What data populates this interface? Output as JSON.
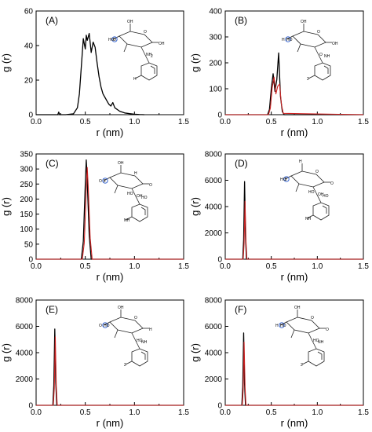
{
  "chart_data": [
    {
      "type": "line",
      "panel_label": "(A)",
      "xlabel": "r (nm)",
      "ylabel": "g (r)",
      "xlim": [
        0.0,
        1.5
      ],
      "ylim": [
        0,
        60
      ],
      "xticks": [
        0.0,
        0.5,
        1.0,
        1.5
      ],
      "yticks": [
        0,
        20,
        40,
        60
      ],
      "xtick_labels": [
        "0.0",
        "0.5",
        "1.0",
        "1.5"
      ],
      "ytick_labels": [
        "0",
        "20",
        "40",
        "60"
      ],
      "molecule_labels": [
        "OH",
        "O",
        "OH",
        "HO",
        "NH",
        "2",
        "H",
        "O"
      ],
      "series": [
        {
          "color": "#000000",
          "x": [
            0.0,
            0.22,
            0.23,
            0.24,
            0.3,
            0.38,
            0.42,
            0.44,
            0.46,
            0.48,
            0.5,
            0.51,
            0.52,
            0.54,
            0.56,
            0.58,
            0.6,
            0.62,
            0.64,
            0.66,
            0.68,
            0.7,
            0.72,
            0.74,
            0.76,
            0.78,
            0.8,
            0.85,
            0.9,
            0.95,
            1.0,
            1.05,
            1.1
          ],
          "y": [
            0,
            0,
            1.5,
            0,
            0,
            0.5,
            4,
            12,
            28,
            44,
            38,
            46,
            43,
            47,
            36,
            42,
            39,
            30,
            22,
            16,
            12,
            10,
            8,
            6,
            5,
            7,
            4,
            2,
            1,
            0.6,
            0.3,
            0.1,
            0
          ]
        }
      ]
    },
    {
      "type": "line",
      "panel_label": "(B)",
      "xlabel": "r (nm)",
      "ylabel": "g (r)",
      "xlim": [
        0.0,
        1.5
      ],
      "ylim": [
        0,
        400
      ],
      "xticks": [
        0.0,
        0.5,
        1.0,
        1.5
      ],
      "yticks": [
        0,
        100,
        200,
        300,
        400
      ],
      "xtick_labels": [
        "0.0",
        "0.5",
        "1.0",
        "1.5"
      ],
      "ytick_labels": [
        "0",
        "100",
        "200",
        "300",
        "400"
      ],
      "molecule_labels": [
        "OH",
        "O",
        "OH",
        "H",
        "O",
        "NH",
        "2",
        "HO"
      ],
      "series": [
        {
          "color": "#000000",
          "x": [
            0.0,
            0.46,
            0.48,
            0.5,
            0.52,
            0.54,
            0.56,
            0.58,
            0.6,
            0.62,
            0.64,
            1.5
          ],
          "y": [
            0,
            0,
            20,
            100,
            158,
            90,
            135,
            238,
            70,
            12,
            0,
            0
          ]
        },
        {
          "color": "#cc2222",
          "x": [
            0.0,
            0.47,
            0.49,
            0.51,
            0.53,
            0.55,
            0.57,
            0.59,
            0.61,
            0.63,
            1.5
          ],
          "y": [
            0,
            0,
            25,
            105,
            145,
            80,
            110,
            118,
            40,
            5,
            0
          ]
        }
      ]
    },
    {
      "type": "line",
      "panel_label": "(C)",
      "xlabel": "r (nm)",
      "ylabel": "g (r)",
      "xlim": [
        0.0,
        1.5
      ],
      "ylim": [
        0,
        350
      ],
      "xticks": [
        0.0,
        0.5,
        1.0,
        1.5
      ],
      "yticks": [
        0,
        50,
        100,
        150,
        200,
        250,
        300,
        350
      ],
      "xtick_labels": [
        "0.0",
        "0.5",
        "1.0",
        "1.5"
      ],
      "ytick_labels": [
        "0",
        "50",
        "100",
        "150",
        "200",
        "250",
        "300",
        "350"
      ],
      "molecule_labels": [
        "OH",
        "H",
        "O",
        "O",
        "OH",
        "HO",
        "NH",
        "2",
        "HO"
      ],
      "series": [
        {
          "color": "#000000",
          "x": [
            0.0,
            0.46,
            0.48,
            0.5,
            0.51,
            0.52,
            0.54,
            0.56,
            1.5
          ],
          "y": [
            0,
            0,
            60,
            250,
            330,
            260,
            80,
            0,
            0
          ]
        },
        {
          "color": "#cc2222",
          "x": [
            0.0,
            0.47,
            0.49,
            0.51,
            0.52,
            0.53,
            0.55,
            0.57,
            1.5
          ],
          "y": [
            0,
            0,
            55,
            230,
            305,
            240,
            70,
            0,
            0
          ]
        }
      ]
    },
    {
      "type": "line",
      "panel_label": "(D)",
      "xlabel": "r (nm)",
      "ylabel": "g (r)",
      "xlim": [
        0.0,
        1.5
      ],
      "ylim": [
        0,
        8000
      ],
      "xticks": [
        0.0,
        0.5,
        1.0,
        1.5
      ],
      "yticks": [
        0,
        2000,
        4000,
        6000,
        8000
      ],
      "xtick_labels": [
        "0.0",
        "0.5",
        "1.0",
        "1.5"
      ],
      "ytick_labels": [
        "0",
        "2000",
        "4000",
        "6000",
        "8000"
      ],
      "molecule_labels": [
        "H",
        "O",
        "O",
        "HO",
        "OH",
        "HO",
        "NH",
        "2",
        "HO"
      ],
      "series": [
        {
          "color": "#000000",
          "x": [
            0.0,
            0.19,
            0.2,
            0.21,
            0.22,
            0.23,
            1.5
          ],
          "y": [
            0,
            0,
            1500,
            5900,
            1800,
            0,
            0
          ]
        },
        {
          "color": "#cc2222",
          "x": [
            0.0,
            0.195,
            0.205,
            0.215,
            0.225,
            0.235,
            1.5
          ],
          "y": [
            0,
            0,
            1200,
            4400,
            1400,
            0,
            0
          ]
        }
      ]
    },
    {
      "type": "line",
      "panel_label": "(E)",
      "xlabel": "r (nm)",
      "ylabel": "g (r)",
      "xlim": [
        0.0,
        1.5
      ],
      "ylim": [
        0,
        8000
      ],
      "xticks": [
        0.0,
        0.5,
        1.0,
        1.5
      ],
      "yticks": [
        0,
        2000,
        4000,
        6000,
        8000
      ],
      "xtick_labels": [
        "0.0",
        "0.5",
        "1.0",
        "1.5"
      ],
      "ytick_labels": [
        "0",
        "2000",
        "4000",
        "6000",
        "8000"
      ],
      "molecule_labels": [
        "OH",
        "O",
        "H",
        "O",
        "HO",
        "NH",
        "2",
        "HO"
      ],
      "series": [
        {
          "color": "#000000",
          "x": [
            0.0,
            0.17,
            0.18,
            0.19,
            0.2,
            0.21,
            1.5
          ],
          "y": [
            0,
            0,
            1500,
            5800,
            1700,
            0,
            0
          ]
        },
        {
          "color": "#cc2222",
          "x": [
            0.0,
            0.175,
            0.185,
            0.195,
            0.205,
            0.215,
            1.5
          ],
          "y": [
            0,
            0,
            1300,
            5200,
            1500,
            0,
            0
          ]
        }
      ]
    },
    {
      "type": "line",
      "panel_label": "(F)",
      "xlabel": "r (nm)",
      "ylabel": "g (r)",
      "xlim": [
        0.0,
        1.5
      ],
      "ylim": [
        0,
        8000
      ],
      "xticks": [
        0.0,
        0.5,
        1.0,
        1.5
      ],
      "yticks": [
        0,
        2000,
        4000,
        6000,
        8000
      ],
      "xtick_labels": [
        "0.0",
        "0.5",
        "1.0",
        "1.5"
      ],
      "ytick_labels": [
        "0",
        "2000",
        "4000",
        "6000",
        "8000"
      ],
      "molecule_labels": [
        "OH",
        "O",
        "O",
        "H",
        "HO",
        "NH",
        "2",
        "HO"
      ],
      "series": [
        {
          "color": "#000000",
          "x": [
            0.0,
            0.18,
            0.19,
            0.2,
            0.21,
            0.22,
            1.5
          ],
          "y": [
            0,
            0,
            1400,
            5500,
            1600,
            0,
            0
          ]
        },
        {
          "color": "#cc2222",
          "x": [
            0.0,
            0.185,
            0.195,
            0.205,
            0.215,
            0.225,
            1.5
          ],
          "y": [
            0,
            0,
            1200,
            4800,
            1400,
            0,
            0
          ]
        }
      ]
    }
  ]
}
